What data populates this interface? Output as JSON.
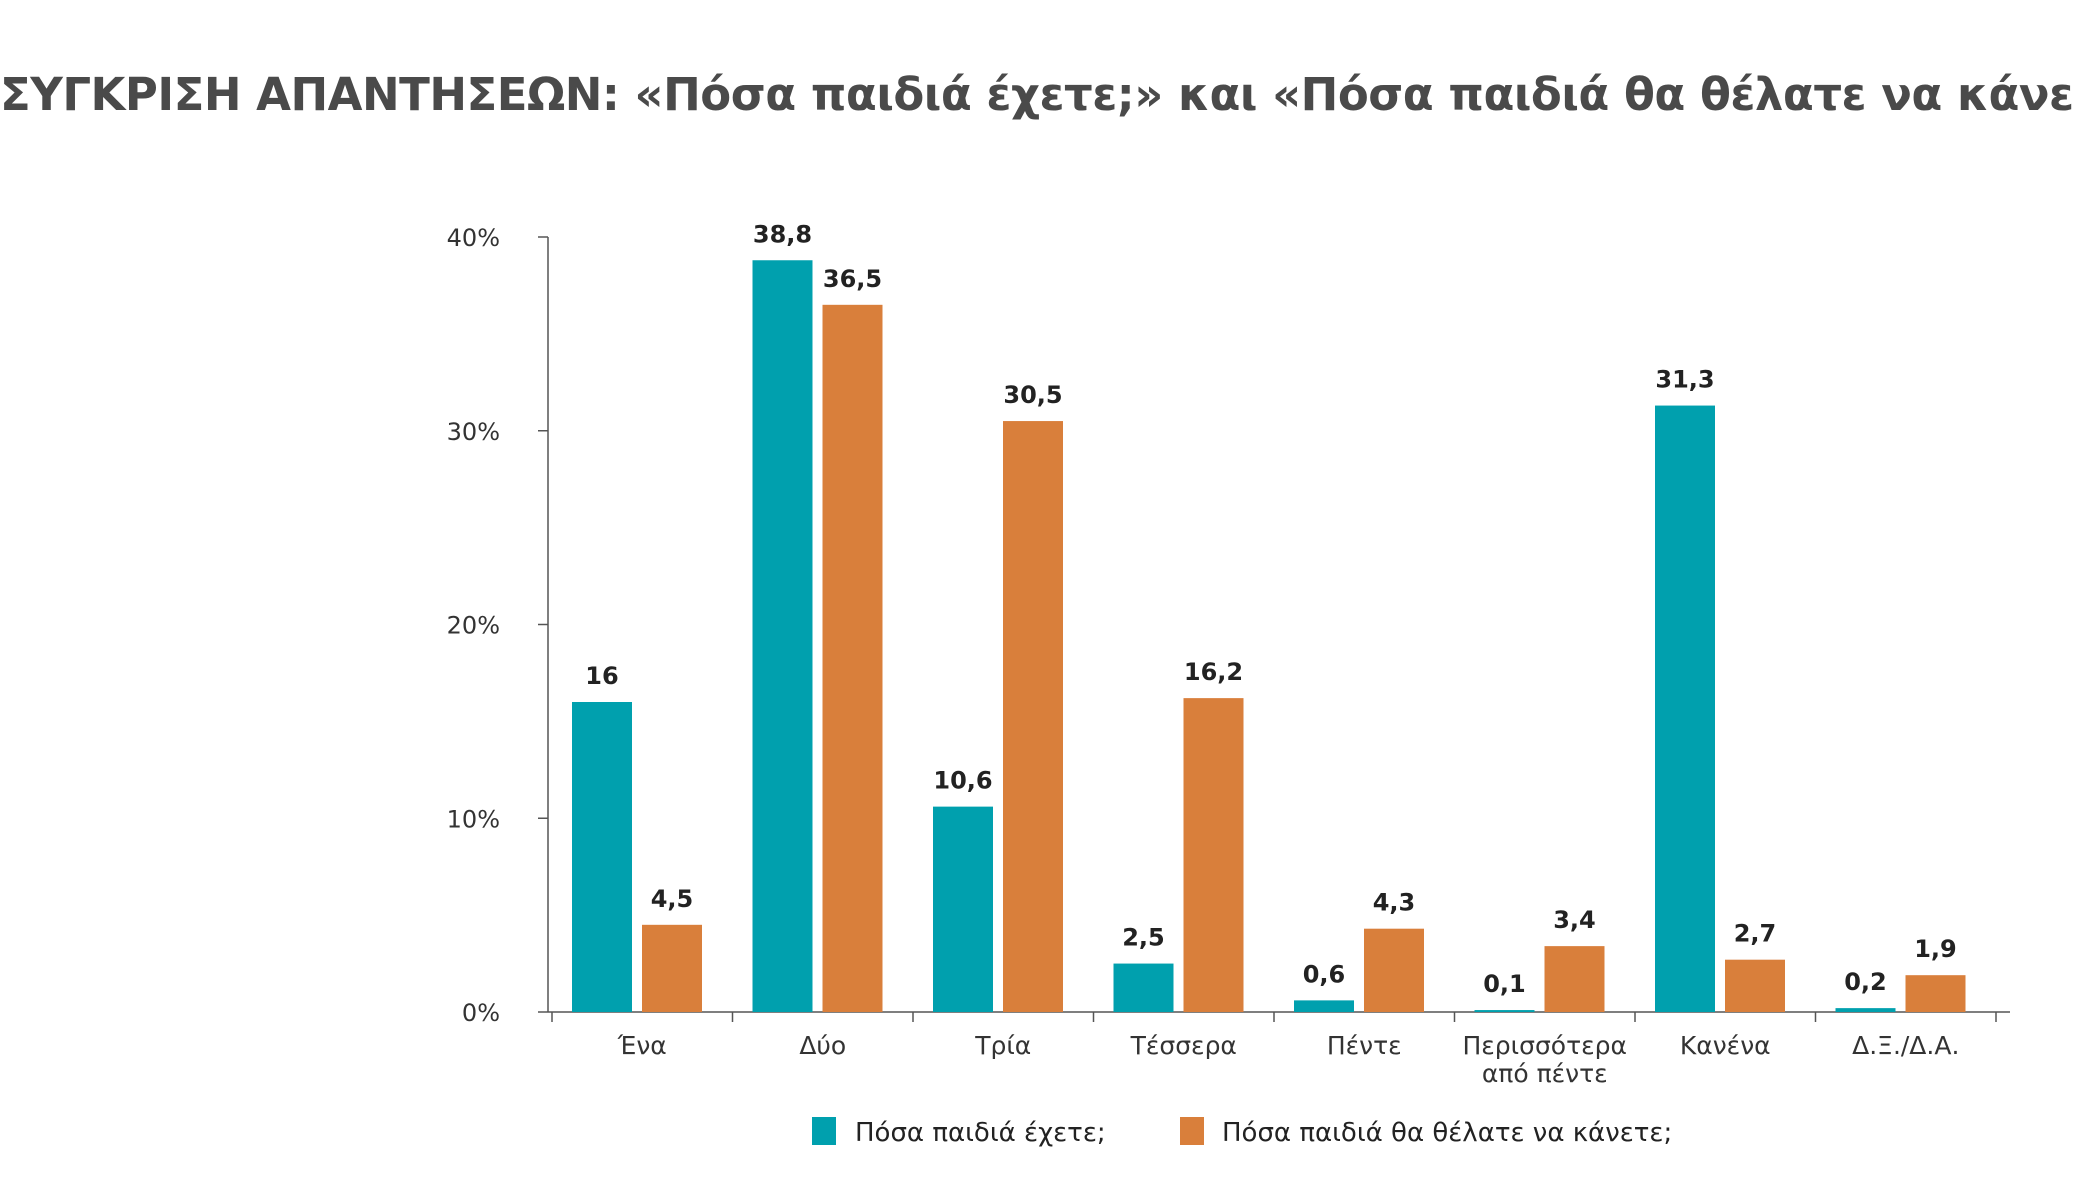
{
  "title": "ΣΥΓΚΡΙΣΗ ΑΠΑΝΤΗΣΕΩΝ: «Πόσα παιδιά έχετε;» και «Πόσα παιδιά θα θέλατε να κάνετε;»",
  "colors": {
    "series1": "#00a0ae",
    "series2": "#d97f3b",
    "axis": "#555555"
  },
  "chart_data": {
    "type": "bar",
    "categories": [
      [
        "Ένα"
      ],
      [
        "Δύο"
      ],
      [
        "Τρία"
      ],
      [
        "Τέσσερα"
      ],
      [
        "Πέντε"
      ],
      [
        "Περισσότερα",
        "από πέντε"
      ],
      [
        "Κανένα"
      ],
      [
        "Δ.Ξ./Δ.Α."
      ]
    ],
    "series": [
      {
        "name": "Πόσα παιδιά έχετε;",
        "values": [
          16,
          38.8,
          10.6,
          2.5,
          0.6,
          0.1,
          31.3,
          0.2
        ],
        "labels": [
          "16",
          "38,8",
          "10,6",
          "2,5",
          "0,6",
          "0,1",
          "31,3",
          "0,2"
        ]
      },
      {
        "name": "Πόσα παιδιά θα θέλατε να κάνετε;",
        "values": [
          4.5,
          36.5,
          30.5,
          16.2,
          4.3,
          3.4,
          2.7,
          1.9
        ],
        "labels": [
          "4,5",
          "36,5",
          "30,5",
          "16,2",
          "4,3",
          "3,4",
          "2,7",
          "1,9"
        ]
      }
    ],
    "ylim": [
      0,
      40
    ],
    "yticks": [
      {
        "value": 0,
        "label": "0%"
      },
      {
        "value": 10,
        "label": "10%"
      },
      {
        "value": 20,
        "label": "20%"
      },
      {
        "value": 30,
        "label": "30%"
      },
      {
        "value": 40,
        "label": "40%"
      }
    ],
    "legend": "bottom-center",
    "grid": false
  }
}
